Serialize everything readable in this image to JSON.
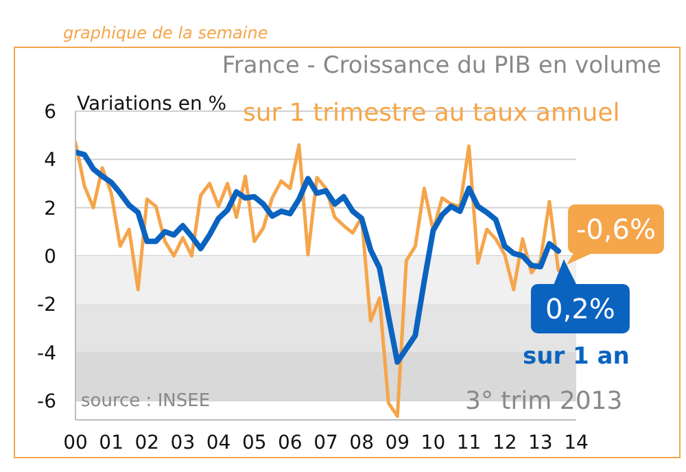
{
  "chart_data": {
    "type": "line",
    "title": "France - Croissance du PIB en volume",
    "ylabel": "Variations en %",
    "annotations": [
      "graphique de la semaine",
      "source : INSEE",
      "3° trim 2013"
    ],
    "x": [
      2000,
      2000.25,
      2000.5,
      2000.75,
      2001,
      2001.25,
      2001.5,
      2001.75,
      2002,
      2002.25,
      2002.5,
      2002.75,
      2003,
      2003.25,
      2003.5,
      2003.75,
      2004,
      2004.25,
      2004.5,
      2004.75,
      2005,
      2005.25,
      2005.5,
      2005.75,
      2006,
      2006.25,
      2006.5,
      2006.75,
      2007,
      2007.25,
      2007.5,
      2007.75,
      2008,
      2008.25,
      2008.5,
      2008.75,
      2009,
      2009.25,
      2009.5,
      2009.75,
      2010,
      2010.25,
      2010.5,
      2010.75,
      2011,
      2011.25,
      2011.5,
      2011.75,
      2012,
      2012.25,
      2012.5,
      2012.75,
      2013,
      2013.25,
      2013.5
    ],
    "series": [
      {
        "name": "sur 1 trimestre au taux annuel",
        "color": "#f5a54a",
        "values": [
          4.7,
          2.9,
          2.0,
          3.65,
          2.6,
          0.4,
          1.1,
          -1.4,
          2.35,
          2.05,
          0.6,
          0.0,
          0.75,
          0.0,
          2.5,
          3.0,
          2.05,
          3.0,
          1.6,
          3.3,
          0.6,
          1.15,
          2.4,
          3.1,
          2.8,
          4.6,
          0.05,
          3.25,
          2.8,
          1.6,
          1.25,
          0.95,
          1.6,
          -2.7,
          -1.75,
          -6.1,
          -6.65,
          -0.2,
          0.4,
          2.8,
          1.05,
          2.4,
          2.15,
          2.05,
          4.55,
          -0.3,
          1.1,
          0.7,
          0.05,
          -1.4,
          0.7,
          -0.7,
          -0.2,
          2.25,
          -0.6
        ],
        "value_labels": [
          null,
          null,
          null,
          null,
          null,
          null,
          null,
          null,
          null,
          null,
          null,
          null,
          null,
          null,
          null,
          null,
          null,
          null,
          null,
          null,
          null,
          null,
          null,
          null,
          null,
          null,
          null,
          null,
          null,
          null,
          null,
          null,
          null,
          null,
          null,
          null,
          null,
          null,
          null,
          null,
          null,
          null,
          null,
          null,
          null,
          null,
          null,
          null,
          null,
          null,
          null,
          null,
          null,
          null,
          "-0,6%"
        ]
      },
      {
        "name": "sur 1 an",
        "color": "#0b63c0",
        "values": [
          4.3,
          4.2,
          3.6,
          3.3,
          3.05,
          2.6,
          2.1,
          1.8,
          0.6,
          0.6,
          1.0,
          0.87,
          1.25,
          0.8,
          0.3,
          0.87,
          1.55,
          1.9,
          2.65,
          2.4,
          2.45,
          2.15,
          1.65,
          1.85,
          1.75,
          2.35,
          3.2,
          2.6,
          2.7,
          2.15,
          2.45,
          1.85,
          1.55,
          0.25,
          -0.5,
          -2.5,
          -4.4,
          -3.85,
          -3.3,
          -1.05,
          1.05,
          1.7,
          2.05,
          1.85,
          2.8,
          2.05,
          1.8,
          1.5,
          0.4,
          0.1,
          0.0,
          -0.4,
          -0.45,
          0.5,
          0.2
        ],
        "value_labels": [
          null,
          null,
          null,
          null,
          null,
          null,
          null,
          null,
          null,
          null,
          null,
          null,
          null,
          null,
          null,
          null,
          null,
          null,
          null,
          null,
          null,
          null,
          null,
          null,
          null,
          null,
          null,
          null,
          null,
          null,
          null,
          null,
          null,
          null,
          null,
          null,
          null,
          null,
          null,
          null,
          null,
          null,
          null,
          null,
          null,
          null,
          null,
          null,
          null,
          null,
          null,
          null,
          null,
          null,
          "0,2%"
        ]
      }
    ],
    "xlim": [
      2000,
      2014
    ],
    "xticks": [
      {
        "value": 2000,
        "label": "00"
      },
      {
        "value": 2001,
        "label": "01"
      },
      {
        "value": 2002,
        "label": "02"
      },
      {
        "value": 2003,
        "label": "03"
      },
      {
        "value": 2004,
        "label": "04"
      },
      {
        "value": 2005,
        "label": "05"
      },
      {
        "value": 2006,
        "label": "06"
      },
      {
        "value": 2007,
        "label": "07"
      },
      {
        "value": 2008,
        "label": "08"
      },
      {
        "value": 2009,
        "label": "09"
      },
      {
        "value": 2010,
        "label": "10"
      },
      {
        "value": 2011,
        "label": "11"
      },
      {
        "value": 2012,
        "label": "12"
      },
      {
        "value": 2013,
        "label": "13"
      },
      {
        "value": 2014,
        "label": "14"
      }
    ],
    "ylim": [
      -6.8,
      6
    ],
    "yticks": [
      -6,
      -4,
      -2,
      0,
      2,
      4,
      6
    ],
    "bands": [
      {
        "axis": "y",
        "from": 0,
        "to": -2,
        "color": "#f0f0f0"
      },
      {
        "axis": "y",
        "from": -2,
        "to": -4,
        "color": "#e4e4e4"
      },
      {
        "axis": "y",
        "from": -4,
        "to": -6,
        "color": "#d9d9d9"
      }
    ],
    "grid": "y",
    "legend": "right",
    "marker": "none",
    "line_style": "solid"
  }
}
